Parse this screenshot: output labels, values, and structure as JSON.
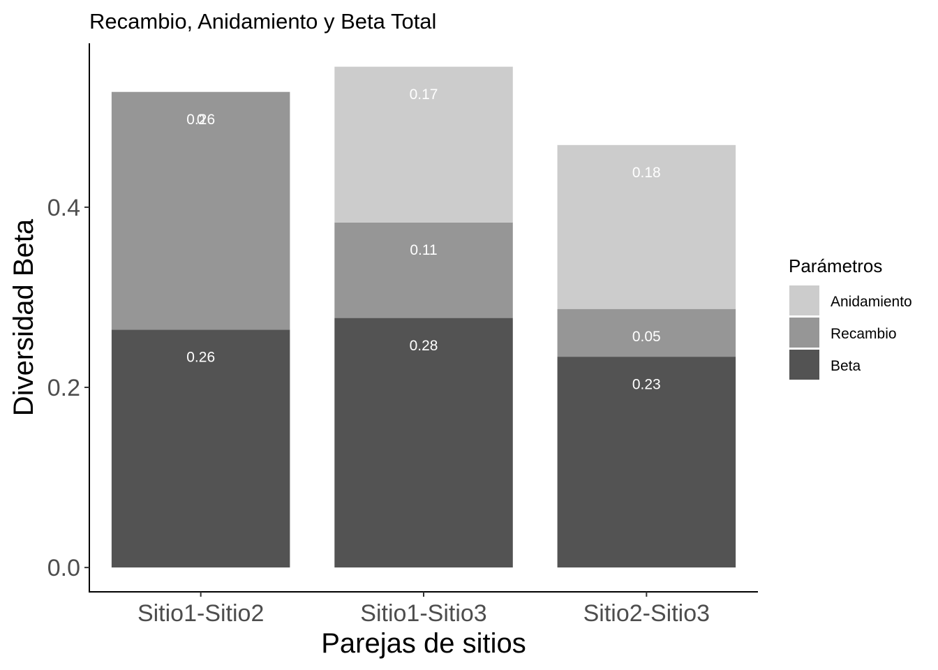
{
  "chart_data": {
    "type": "bar",
    "stacked": true,
    "title": "Recambio, Anidamiento y Beta Total",
    "xlabel": "Parejas de sitios",
    "ylabel": "Diversidad Beta",
    "categories": [
      "Sitio1-Sitio2",
      "Sitio1-Sitio3",
      "Sitio2-Sitio3"
    ],
    "y_ticks": [
      {
        "value": 0.0,
        "label": "0.0"
      },
      {
        "value": 0.2,
        "label": "0.2"
      },
      {
        "value": 0.4,
        "label": "0.4"
      }
    ],
    "ylim": [
      -0.027,
      0.582
    ],
    "grid": false,
    "legend": {
      "title": "Parámetros",
      "placement": "right",
      "entries": [
        "Anidamiento",
        "Recambio",
        "Beta"
      ]
    },
    "series": [
      {
        "name": "Beta",
        "color": "#535353",
        "values": [
          0.264,
          0.277,
          0.234
        ],
        "labels": [
          "0.26",
          "0.28",
          "0.23"
        ]
      },
      {
        "name": "Recambio",
        "color": "#969696",
        "values": [
          0.264,
          0.106,
          0.053
        ],
        "labels": [
          "0.26",
          "0.11",
          "0.05"
        ]
      },
      {
        "name": "Anidamiento",
        "color": "#cccccc",
        "values": [
          0.0,
          0.173,
          0.182
        ],
        "labels": [
          "0",
          "0.17",
          "0.18"
        ]
      }
    ]
  }
}
